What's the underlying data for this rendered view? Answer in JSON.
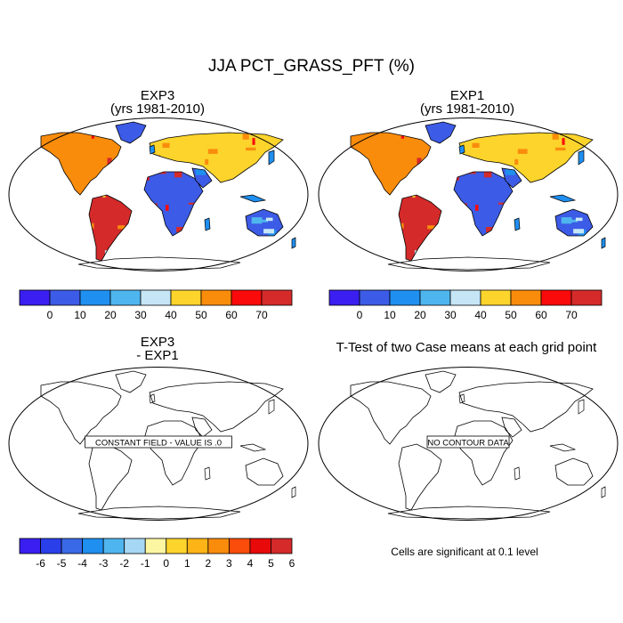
{
  "title": "JJA PCT_GRASS_PFT (%)",
  "panels": [
    {
      "id": "exp3",
      "title_lines": [
        "EXP3",
        "(yrs 1981-2010)"
      ],
      "field": "PCT_GRASS_PFT",
      "filled": true,
      "overlay_label": ""
    },
    {
      "id": "exp1",
      "title_lines": [
        "EXP1",
        "(yrs 1981-2010)"
      ],
      "field": "PCT_GRASS_PFT",
      "filled": true,
      "overlay_label": ""
    },
    {
      "id": "diff",
      "title_lines": [
        "EXP3",
        "- EXP1"
      ],
      "field": "difference",
      "filled": false,
      "overlay_label": "CONSTANT FIELD - VALUE IS .0"
    },
    {
      "id": "ttest",
      "title_lines": [
        "T-Test of two Case means at each grid point"
      ],
      "field": "t-test",
      "filled": false,
      "overlay_label": "NO CONTOUR DATA"
    }
  ],
  "colorbars": {
    "main": {
      "colors": [
        "#3a1ff0",
        "#3c5be6",
        "#1f8ff0",
        "#4fb5ee",
        "#c6e6f6",
        "#fcd42c",
        "#fa8c0c",
        "#fa0a0a",
        "#d42a2a"
      ],
      "tick_labels": [
        "0",
        "10",
        "20",
        "30",
        "40",
        "50",
        "60",
        "70"
      ]
    },
    "diff": {
      "colors": [
        "#3a1ff0",
        "#2a3fea",
        "#3a69e6",
        "#1f8ff0",
        "#4fb5ee",
        "#a6d8f6",
        "#fcf6a2",
        "#fcd42c",
        "#fcb416",
        "#fa8c0c",
        "#fa4c0a",
        "#e80a0a",
        "#d42a2a"
      ],
      "tick_labels": [
        "-6",
        "-5",
        "-4",
        "-3",
        "-2",
        "-1",
        "0",
        "1",
        "2",
        "3",
        "4",
        "5",
        "6"
      ]
    }
  },
  "significance_note": "Cells are significant at 0.1 level"
}
